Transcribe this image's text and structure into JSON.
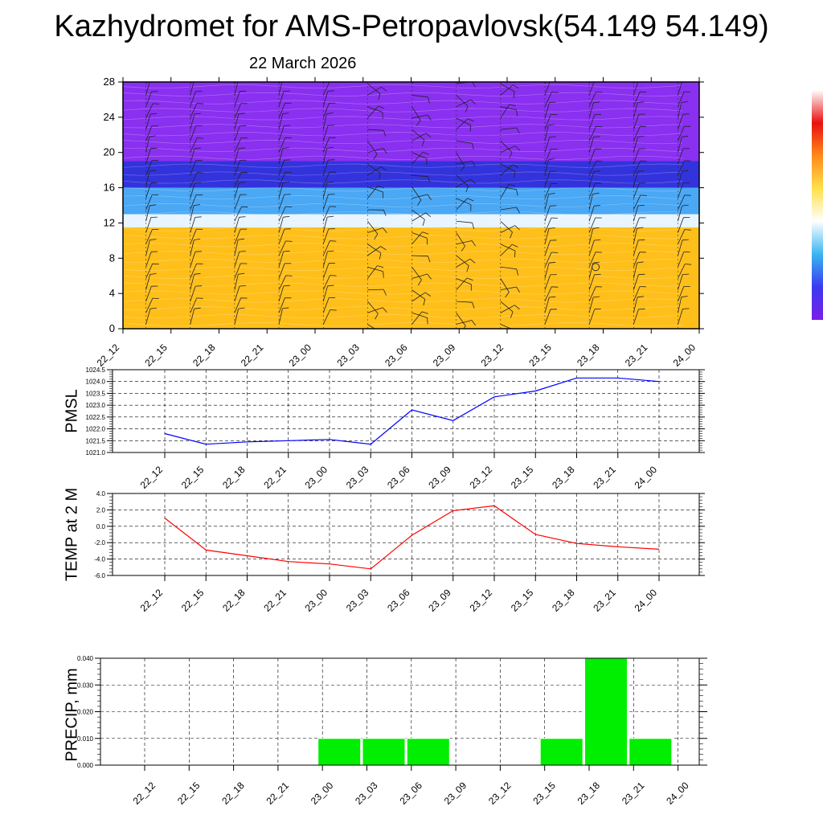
{
  "title": "Kazhydromet for AMS-Petropavlovsk(54.149 54.149)",
  "subtitle": "22 March 2026",
  "time_labels": [
    "22_12",
    "22_15",
    "22_18",
    "22_21",
    "23_00",
    "23_03",
    "23_06",
    "23_09",
    "23_12",
    "23_15",
    "23_18",
    "23_21",
    "24_00"
  ],
  "chart_data": [
    {
      "type": "heatmap",
      "name": "vertical-cross-section",
      "ylim": [
        0,
        28
      ],
      "yticks": [
        0,
        4,
        8,
        12,
        16,
        20,
        24,
        28
      ],
      "layers": [
        {
          "from": 0,
          "to": 11.5,
          "color": "#ffbf1a"
        },
        {
          "from": 11.5,
          "to": 13,
          "color": "#e8f4ff"
        },
        {
          "from": 13,
          "to": 16,
          "color": "#4aa8f5"
        },
        {
          "from": 16,
          "to": 19,
          "color": "#3333dd"
        },
        {
          "from": 19,
          "to": 28,
          "color": "#8a30f0"
        }
      ],
      "colorbar": [
        "#7a1ee8",
        "#3a3af0",
        "#3ab6f0",
        "#ffffff",
        "#ffe04a",
        "#ff8a1a",
        "#e81010",
        "#ffffff"
      ]
    },
    {
      "type": "line",
      "name": "pmsl",
      "ylabel": "PMSL",
      "ylim": [
        1021.0,
        1024.5
      ],
      "yticks": [
        "1021.0",
        "1021.5",
        "1022.0",
        "1022.5",
        "1023.0",
        "1023.5",
        "1024.0",
        "1024.5"
      ],
      "categories": [
        "22_12",
        "22_15",
        "22_18",
        "22_21",
        "23_00",
        "23_03",
        "23_06",
        "23_09",
        "23_12",
        "23_15",
        "23_18",
        "23_21",
        "24_00"
      ],
      "values": [
        1021.8,
        1021.35,
        1021.45,
        1021.5,
        1021.55,
        1021.35,
        1022.8,
        1022.35,
        1023.35,
        1023.6,
        1024.15,
        1024.15,
        1024.0
      ],
      "color": "#0000ff"
    },
    {
      "type": "line",
      "name": "temp-2m",
      "ylabel": "TEMP at 2 M",
      "ylim": [
        -6.0,
        4.0
      ],
      "yticks": [
        "-6.0",
        "-4.0",
        "-2.0",
        "0.0",
        "2.0",
        "4.0"
      ],
      "categories": [
        "22_12",
        "22_15",
        "22_18",
        "22_21",
        "23_00",
        "23_03",
        "23_06",
        "23_09",
        "23_12",
        "23_15",
        "23_18",
        "23_21",
        "24_00"
      ],
      "values": [
        1.0,
        -2.9,
        -3.6,
        -4.3,
        -4.6,
        -5.2,
        -1.1,
        1.9,
        2.5,
        -1.0,
        -2.1,
        -2.5,
        -2.8
      ],
      "color": "#ff0000"
    },
    {
      "type": "bar",
      "name": "precip",
      "ylabel": "PRECIP, mm",
      "ylim": [
        0,
        0.04
      ],
      "yticks": [
        "0.000",
        "0.010",
        "0.020",
        "0.030",
        "0.040"
      ],
      "categories": [
        "22_12",
        "22_15",
        "22_18",
        "22_21",
        "23_00",
        "23_03",
        "23_06",
        "23_09",
        "23_12",
        "23_15",
        "23_18",
        "23_21",
        "24_00"
      ],
      "values": [
        0,
        0,
        0,
        0,
        0.01,
        0.01,
        0.01,
        0,
        0,
        0.01,
        0.04,
        0.01,
        0
      ],
      "color": "#00ee00"
    }
  ]
}
